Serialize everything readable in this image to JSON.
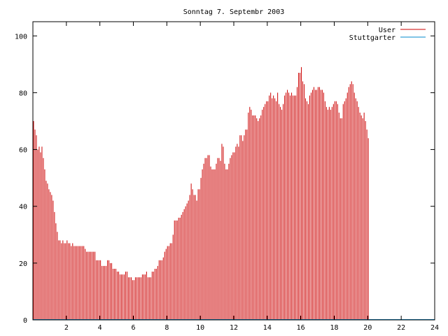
{
  "chart_data": {
    "type": "bar",
    "title": "Sonntag 7. Septembr 2003",
    "xlabel": "",
    "ylabel": "",
    "xlim": [
      0,
      24
    ],
    "ylim": [
      0,
      105
    ],
    "x_ticks": [
      2,
      4,
      6,
      8,
      10,
      12,
      14,
      16,
      18,
      20,
      22,
      24
    ],
    "y_ticks": [
      0,
      20,
      40,
      60,
      80,
      100
    ],
    "grid": false,
    "legend_position": "top-right",
    "bar_interval_hours": 0.0833,
    "series": [
      {
        "name": "User",
        "color": "#cc0000",
        "values": [
          70,
          67,
          65,
          60,
          61,
          59,
          61,
          57,
          53,
          49,
          48,
          46,
          45,
          44,
          42,
          38,
          34,
          31,
          28,
          28,
          27,
          28,
          27,
          27,
          28,
          27,
          27,
          26,
          27,
          26,
          26,
          26,
          26,
          26,
          26,
          26,
          26,
          25,
          24,
          24,
          24,
          24,
          24,
          24,
          24,
          21,
          21,
          21,
          21,
          19,
          19,
          19,
          19,
          21,
          21,
          20,
          20,
          18,
          18,
          18,
          17,
          17,
          16,
          16,
          16,
          16,
          17,
          17,
          15,
          15,
          15,
          14,
          14,
          15,
          15,
          15,
          15,
          15,
          16,
          16,
          16,
          17,
          15,
          15,
          15,
          17,
          17,
          18,
          18,
          19,
          21,
          21,
          21,
          22,
          24,
          25,
          26,
          26,
          27,
          27,
          30,
          35,
          35,
          35,
          36,
          36,
          37,
          38,
          39,
          40,
          41,
          42,
          44,
          48,
          46,
          44,
          44,
          42,
          46,
          46,
          50,
          53,
          55,
          57,
          57,
          58,
          58,
          54,
          53,
          53,
          53,
          55,
          57,
          57,
          56,
          62,
          61,
          55,
          53,
          53,
          55,
          57,
          58,
          59,
          59,
          61,
          62,
          61,
          65,
          65,
          63,
          65,
          67,
          67,
          73,
          75,
          74,
          72,
          72,
          72,
          71,
          70,
          71,
          72,
          74,
          75,
          76,
          77,
          77,
          79,
          80,
          78,
          79,
          78,
          77,
          80,
          76,
          75,
          74,
          76,
          79,
          80,
          81,
          80,
          79,
          80,
          79,
          79,
          79,
          82,
          87,
          87,
          89,
          84,
          83,
          78,
          77,
          76,
          79,
          80,
          81,
          82,
          81,
          81,
          82,
          82,
          81,
          81,
          80,
          77,
          75,
          74,
          75,
          74,
          75,
          76,
          77,
          77,
          76,
          73,
          71,
          71,
          76,
          77,
          78,
          80,
          82,
          83,
          84,
          83,
          80,
          78,
          77,
          75,
          73,
          72,
          71,
          73,
          70,
          67,
          64
        ]
      },
      {
        "name": "Stuttgarter",
        "color": "#0088cc",
        "values": [
          0,
          0,
          0,
          0,
          0,
          0,
          0,
          0,
          0,
          0,
          0,
          0,
          0,
          0,
          0,
          0,
          0,
          0,
          0,
          0,
          0,
          0,
          0,
          0,
          0,
          0,
          0,
          0,
          0,
          0,
          0,
          0,
          0,
          0,
          0,
          0,
          0,
          0,
          0,
          0,
          0,
          0,
          0,
          0,
          0,
          0,
          0,
          0,
          0,
          0,
          0,
          0,
          0,
          0,
          0,
          0,
          0,
          0,
          0,
          0,
          0,
          0,
          0,
          0,
          0,
          0,
          0,
          0,
          0,
          0,
          0,
          0,
          0,
          0,
          0,
          0,
          0,
          0,
          0,
          0,
          0,
          0,
          0,
          0,
          0,
          0,
          0,
          0,
          0,
          0,
          0,
          0,
          0,
          0,
          0,
          0,
          0,
          0,
          0,
          0,
          0,
          0,
          0,
          0,
          0,
          0,
          0,
          0,
          0,
          0,
          0,
          0,
          0,
          0,
          0,
          0,
          0,
          0,
          0,
          0,
          0,
          0,
          0,
          0,
          0,
          0,
          0,
          0,
          0,
          0,
          0,
          0,
          0,
          0,
          0,
          0,
          0,
          0,
          0,
          0,
          0,
          0,
          0,
          0,
          0,
          0,
          0,
          0,
          0,
          0,
          0,
          0,
          0,
          0,
          0,
          0,
          0,
          0,
          0,
          0,
          0,
          0,
          0,
          0,
          0,
          0,
          0,
          0,
          0,
          0,
          0,
          0,
          0,
          0,
          0,
          0,
          0,
          0,
          0,
          0,
          0,
          0,
          0,
          0,
          0,
          0,
          0,
          0,
          0,
          0,
          0,
          0,
          0,
          0,
          0,
          0,
          0,
          0,
          0,
          0,
          0,
          0,
          0,
          0,
          0,
          0,
          0,
          0,
          0,
          0,
          0,
          0,
          0,
          0,
          0,
          0,
          0,
          0,
          0,
          0,
          0,
          0,
          0,
          0,
          0,
          0,
          0,
          0,
          0,
          0,
          0,
          0,
          0,
          0,
          0,
          0,
          0,
          0,
          0,
          0,
          0,
          0,
          0,
          0,
          0,
          0,
          0,
          0,
          0,
          0,
          0,
          0,
          0,
          0,
          0
        ]
      }
    ]
  }
}
